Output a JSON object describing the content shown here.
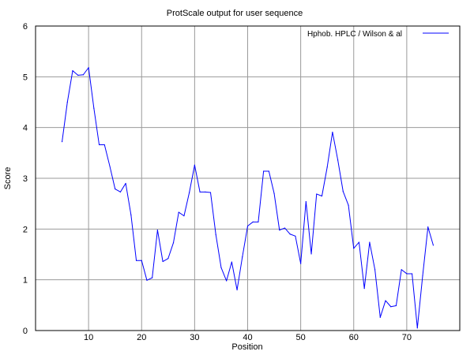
{
  "chart_data": {
    "type": "line",
    "title": "ProtScale output for user sequence",
    "xlabel": "Position",
    "ylabel": "Score",
    "xlim": [
      0,
      80
    ],
    "ylim": [
      0,
      6
    ],
    "x_ticks": [
      10,
      20,
      30,
      40,
      50,
      60,
      70
    ],
    "y_ticks": [
      0,
      1,
      2,
      3,
      4,
      5,
      6
    ],
    "x_tick_labels": [
      "10",
      "20",
      "30",
      "40",
      "50",
      "60",
      "70"
    ],
    "y_tick_labels": [
      "0",
      "1",
      "2",
      "3",
      "4",
      "5",
      "6"
    ],
    "grid": true,
    "legend_position": "top-right",
    "series": [
      {
        "name": "Hphob.  HPLC  /  Wilson  & al",
        "color": "#0000ff",
        "x": [
          5,
          6,
          7,
          8,
          9,
          10,
          11,
          12,
          13,
          14,
          15,
          16,
          17,
          18,
          19,
          20,
          21,
          22,
          23,
          24,
          25,
          26,
          27,
          28,
          29,
          30,
          31,
          32,
          33,
          34,
          35,
          36,
          37,
          38,
          39,
          40,
          41,
          42,
          43,
          44,
          45,
          46,
          47,
          48,
          49,
          50,
          51,
          52,
          53,
          54,
          55,
          56,
          57,
          58,
          59,
          60,
          61,
          62,
          63,
          64,
          65,
          66,
          67,
          68,
          69,
          70,
          71,
          72,
          73,
          74,
          75
        ],
        "values": [
          3.72,
          4.5,
          5.12,
          5.03,
          5.04,
          5.18,
          4.38,
          3.66,
          3.66,
          3.24,
          2.79,
          2.73,
          2.9,
          2.28,
          1.38,
          1.38,
          0.99,
          1.04,
          1.98,
          1.36,
          1.42,
          1.73,
          2.33,
          2.26,
          2.72,
          3.26,
          2.73,
          2.73,
          2.72,
          1.89,
          1.24,
          0.98,
          1.35,
          0.8,
          1.45,
          2.06,
          2.14,
          2.14,
          3.14,
          3.14,
          2.7,
          1.98,
          2.02,
          1.9,
          1.86,
          1.32,
          2.54,
          1.51,
          2.69,
          2.65,
          3.22,
          3.91,
          3.36,
          2.74,
          2.47,
          1.62,
          1.74,
          0.83,
          1.74,
          1.2,
          0.26,
          0.59,
          0.47,
          0.49,
          1.2,
          1.12,
          1.12,
          0.05,
          1.08,
          2.04,
          1.68
        ]
      }
    ]
  }
}
